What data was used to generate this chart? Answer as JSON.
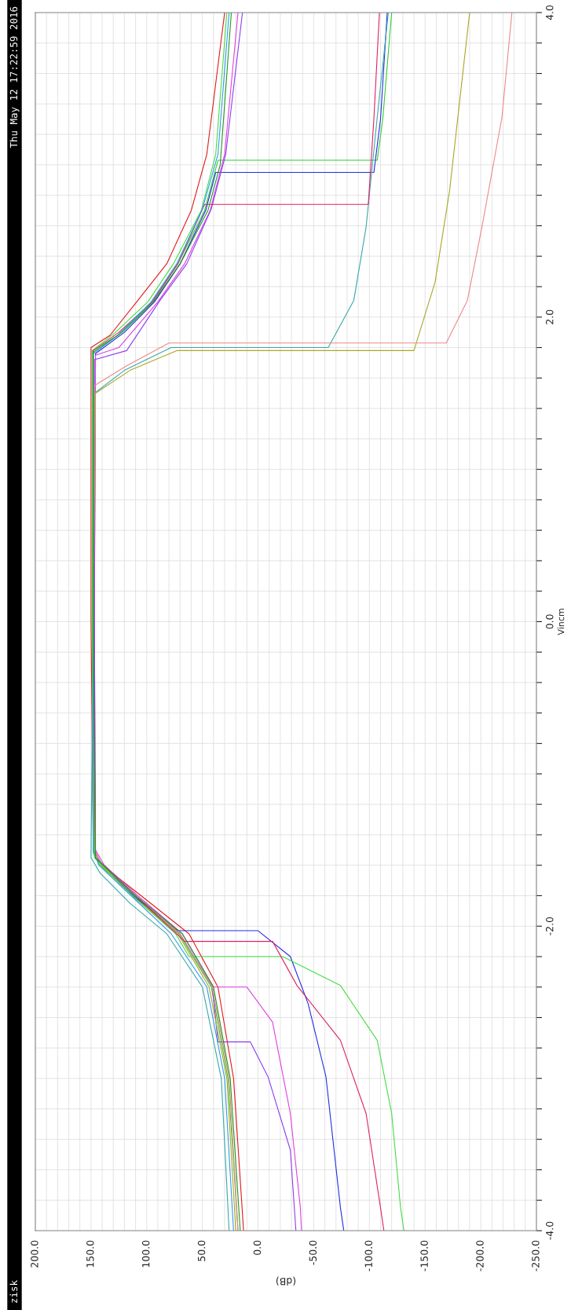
{
  "chart_data": {
    "type": "line",
    "xlabel": "(dB)",
    "ylabel": "Vincm",
    "annotations": [
      "Thu May 12 17:22:59 2016",
      "zisk"
    ],
    "xlim": [
      200,
      -250
    ],
    "ylim": [
      -4,
      4
    ],
    "grid": true,
    "legend": false,
    "yticks": [
      {
        "value": -4,
        "label": "-4.0"
      },
      {
        "value": -3.8,
        "label": null
      },
      {
        "value": -3.6,
        "label": null
      },
      {
        "value": -3.4,
        "label": null
      },
      {
        "value": -3.2,
        "label": null
      },
      {
        "value": -3,
        "label": null
      },
      {
        "value": -2.8,
        "label": null
      },
      {
        "value": -2.6,
        "label": null
      },
      {
        "value": -2.4,
        "label": null
      },
      {
        "value": -2.2,
        "label": null
      },
      {
        "value": -2,
        "label": "-2.0"
      },
      {
        "value": -1.8,
        "label": null
      },
      {
        "value": -1.6,
        "label": null
      },
      {
        "value": -1.4,
        "label": null
      },
      {
        "value": -1.2,
        "label": null
      },
      {
        "value": -1,
        "label": null
      },
      {
        "value": -0.8,
        "label": null
      },
      {
        "value": -0.6,
        "label": null
      },
      {
        "value": -0.4,
        "label": null
      },
      {
        "value": -0.2,
        "label": null
      },
      {
        "value": 0,
        "label": "0.0"
      },
      {
        "value": 0.2,
        "label": null
      },
      {
        "value": 0.4,
        "label": null
      },
      {
        "value": 0.6,
        "label": null
      },
      {
        "value": 0.8,
        "label": null
      },
      {
        "value": 1,
        "label": null
      },
      {
        "value": 1.2,
        "label": null
      },
      {
        "value": 1.4,
        "label": null
      },
      {
        "value": 1.6,
        "label": null
      },
      {
        "value": 1.8,
        "label": null
      },
      {
        "value": 2,
        "label": "2.0"
      },
      {
        "value": 2.2,
        "label": null
      },
      {
        "value": 2.4,
        "label": null
      },
      {
        "value": 2.6,
        "label": null
      },
      {
        "value": 2.8,
        "label": null
      },
      {
        "value": 3,
        "label": null
      },
      {
        "value": 3.2,
        "label": null
      },
      {
        "value": 3.4,
        "label": null
      },
      {
        "value": 3.6,
        "label": null
      },
      {
        "value": 3.8,
        "label": null
      },
      {
        "value": 4,
        "label": "4.0"
      }
    ],
    "xticks": [
      {
        "value": 200,
        "label": "200.0"
      },
      {
        "value": 190,
        "label": null
      },
      {
        "value": 180,
        "label": null
      },
      {
        "value": 170,
        "label": null
      },
      {
        "value": 160,
        "label": null
      },
      {
        "value": 150,
        "label": "150.0"
      },
      {
        "value": 140,
        "label": null
      },
      {
        "value": 130,
        "label": null
      },
      {
        "value": 120,
        "label": null
      },
      {
        "value": 110,
        "label": null
      },
      {
        "value": 100,
        "label": "100.0"
      },
      {
        "value": 90,
        "label": null
      },
      {
        "value": 80,
        "label": null
      },
      {
        "value": 70,
        "label": null
      },
      {
        "value": 60,
        "label": null
      },
      {
        "value": 50,
        "label": "50.0"
      },
      {
        "value": 40,
        "label": null
      },
      {
        "value": 30,
        "label": null
      },
      {
        "value": 20,
        "label": null
      },
      {
        "value": 10,
        "label": null
      },
      {
        "value": 0,
        "label": "0.0"
      },
      {
        "value": -10,
        "label": null
      },
      {
        "value": -20,
        "label": null
      },
      {
        "value": -30,
        "label": null
      },
      {
        "value": -40,
        "label": null
      },
      {
        "value": -50,
        "label": "-50.0"
      },
      {
        "value": -60,
        "label": null
      },
      {
        "value": -70,
        "label": null
      },
      {
        "value": -80,
        "label": null
      },
      {
        "value": -90,
        "label": null
      },
      {
        "value": -100,
        "label": "-100.0"
      },
      {
        "value": -110,
        "label": null
      },
      {
        "value": -120,
        "label": null
      },
      {
        "value": -130,
        "label": null
      },
      {
        "value": -140,
        "label": null
      },
      {
        "value": -150,
        "label": "-150.0"
      },
      {
        "value": -160,
        "label": null
      },
      {
        "value": -170,
        "label": null
      },
      {
        "value": -180,
        "label": null
      },
      {
        "value": -190,
        "label": null
      },
      {
        "value": -200,
        "label": "-200.0"
      },
      {
        "value": -210,
        "label": null
      },
      {
        "value": -220,
        "label": null
      },
      {
        "value": -230,
        "label": null
      },
      {
        "value": -240,
        "label": null
      },
      {
        "value": -250,
        "label": "-250.0"
      }
    ],
    "series": [
      {
        "color": "#e31a1c",
        "values": [
          -4,
          -3,
          -2.4,
          -2.05,
          -1.8,
          -1.6,
          -1.5,
          0,
          1.8,
          1.88,
          2.1,
          2.35,
          2.7,
          3.07,
          4
        ],
        "x": [
          13,
          22,
          36,
          62,
          105,
          140,
          148,
          150,
          150,
          133,
          109,
          82,
          60,
          46,
          30
        ]
      },
      {
        "color": "#33cc33",
        "values": [
          -4,
          -3,
          -2.4,
          -2.05,
          -1.8,
          -1.6,
          -1.52,
          0,
          1.78,
          1.88,
          2.1,
          2.35,
          2.7,
          3.03,
          3.03,
          3.3,
          4
        ],
        "x": [
          18,
          27,
          42,
          71,
          112,
          142,
          148,
          149,
          148,
          126,
          95,
          72,
          48,
          36,
          -107,
          -112,
          -120
        ]
      },
      {
        "color": "#1f2fe0",
        "values": [
          -4,
          -3.85,
          -2.99,
          -2.51,
          -2.2,
          -2.03,
          -2.03,
          -1.8,
          -1.6,
          -1.5,
          0,
          1.76,
          1.9,
          2.1,
          2.35,
          2.7,
          2.95,
          2.95,
          3.3,
          4
        ],
        "x": [
          -77,
          -74,
          -61,
          -45,
          -29,
          0,
          72,
          112,
          140,
          147,
          147,
          146,
          120,
          93,
          70,
          47,
          38,
          -104,
          -110,
          -116
        ]
      },
      {
        "color": "#e040e0",
        "values": [
          -4,
          -3.85,
          -3.23,
          -2.63,
          -2.4,
          -2.4,
          -2.05,
          -1.8,
          -1.6,
          -1.5,
          0,
          1.75,
          1.8,
          2.1,
          2.35,
          2.7,
          3.07,
          4
        ],
        "x": [
          -39,
          -38,
          -29,
          -13,
          10,
          40,
          68,
          108,
          138,
          146,
          147,
          146,
          125,
          90,
          66,
          43,
          30,
          18
        ]
      },
      {
        "color": "#8a3ff0",
        "values": [
          -4,
          -3.47,
          -2.99,
          -2.76,
          -2.76,
          -2.4,
          -2.05,
          -1.8,
          -1.55,
          0,
          1.72,
          1.78,
          2.11,
          2.35,
          2.71,
          3.07,
          4
        ],
        "x": [
          -34,
          -29,
          -9,
          7,
          36,
          41,
          70,
          110,
          146,
          147,
          147,
          118,
          88,
          64,
          42,
          29,
          14
        ]
      },
      {
        "color": "#3aa8a8",
        "values": [
          -4,
          -3,
          -2.4,
          -2.05,
          -1.85,
          -1.65,
          -1.55,
          0,
          1.5,
          1.65,
          1.8,
          1.8,
          2.11,
          2.59,
          3.31,
          4
        ],
        "x": [
          26,
          33,
          50,
          82,
          115,
          142,
          150,
          148,
          147,
          120,
          78,
          -63,
          -86,
          -97,
          -107,
          -117
        ]
      },
      {
        "color": "#a8a828",
        "values": [
          -4,
          -3,
          -2.4,
          -2.05,
          -1.8,
          -1.6,
          -1.5,
          0,
          1.5,
          1.65,
          1.78,
          1.78,
          2.23,
          2.83,
          4
        ],
        "x": [
          20,
          28,
          44,
          72,
          113,
          141,
          147,
          148,
          146,
          115,
          73,
          -140,
          -159,
          -172,
          -190
        ]
      },
      {
        "color": "#ee8888",
        "values": [
          -4,
          -3,
          -2.4,
          -2.05,
          -1.8,
          -1.6,
          -1.5,
          0,
          1.55,
          1.68,
          1.83,
          1.83,
          2.11,
          2.59,
          3.31,
          4
        ],
        "x": [
          18,
          26,
          41,
          70,
          110,
          140,
          147,
          148,
          147,
          118,
          80,
          -169,
          -188,
          -201,
          -219,
          -228
        ]
      },
      {
        "color": "#44dd44",
        "values": [
          -4,
          -3.85,
          -3.23,
          -2.75,
          -2.39,
          -2.2,
          -2.2,
          -2.05,
          -1.8,
          -1.55,
          0,
          1.78,
          1.9,
          2.1,
          2.35,
          2.7,
          3.07,
          4
        ],
        "x": [
          -131,
          -128,
          -120,
          -107,
          -74,
          -22,
          62,
          74,
          113,
          147,
          149,
          149,
          128,
          99,
          76,
          51,
          38,
          28
        ]
      },
      {
        "color": "#dd2266",
        "values": [
          -4,
          -3.85,
          -3.23,
          -2.75,
          -2.39,
          -2.1,
          -2.1,
          -1.8,
          -1.55,
          0,
          1.78,
          1.9,
          2.1,
          2.35,
          2.74,
          2.74,
          3.3,
          4
        ],
        "x": [
          -113,
          -110,
          -97,
          -74,
          -35,
          -13,
          66,
          110,
          146,
          148,
          148,
          125,
          95,
          72,
          48,
          -99,
          -104,
          -109
        ]
      },
      {
        "color": "#3399ee",
        "values": [
          -4,
          -3,
          -2.4,
          -2.05,
          -1.8,
          -1.6,
          -1.5,
          0,
          1.76,
          1.88,
          2.1,
          2.35,
          2.71,
          3.07,
          4
        ],
        "x": [
          22,
          30,
          46,
          78,
          114,
          143,
          148,
          148,
          148,
          126,
          96,
          73,
          50,
          36,
          26
        ]
      },
      {
        "color": "#229922",
        "values": [
          -4,
          -3,
          -2.4,
          -2.05,
          -1.8,
          -1.55,
          0,
          1.77,
          1.9,
          2.1,
          2.35,
          2.7,
          3.0,
          4
        ],
        "x": [
          16,
          25,
          40,
          68,
          110,
          146,
          148,
          148,
          122,
          94,
          70,
          45,
          34,
          24
        ]
      }
    ]
  }
}
